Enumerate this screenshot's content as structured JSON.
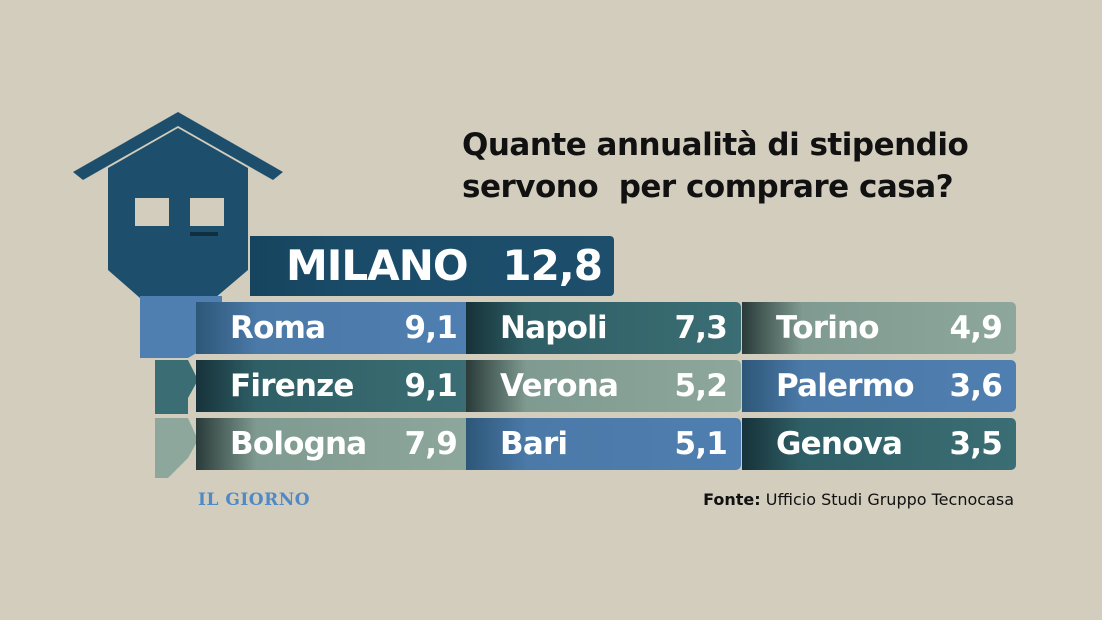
{
  "chart_data": {
    "type": "table",
    "title": [
      "Quante annualità di stipendio",
      "servono  per comprare casa?"
    ],
    "featured": {
      "city": "MILANO",
      "value": "12,8"
    },
    "rows": [
      {
        "city": "Roma",
        "value": "9,1"
      },
      {
        "city": "Napoli",
        "value": "7,3"
      },
      {
        "city": "Torino",
        "value": "4,9"
      },
      {
        "city": "Firenze",
        "value": "9,1"
      },
      {
        "city": "Verona",
        "value": "5,2"
      },
      {
        "city": "Palermo",
        "value": "3,6"
      },
      {
        "city": "Bologna",
        "value": "7,9"
      },
      {
        "city": "Bari",
        "value": "5,1"
      },
      {
        "city": "Genova",
        "value": "3,5"
      }
    ]
  },
  "source": {
    "label": "Fonte:",
    "text": "Ufficio Studi Gruppo Tecnocasa"
  },
  "logo": "IL GIORNO",
  "colors": {
    "background": "#d3cdbe",
    "navy": "#1d4f6c",
    "blue": "#4f7fb0",
    "teal": "#3b6e74",
    "sage": "#8ea79d",
    "logo": "#4f89c6"
  }
}
